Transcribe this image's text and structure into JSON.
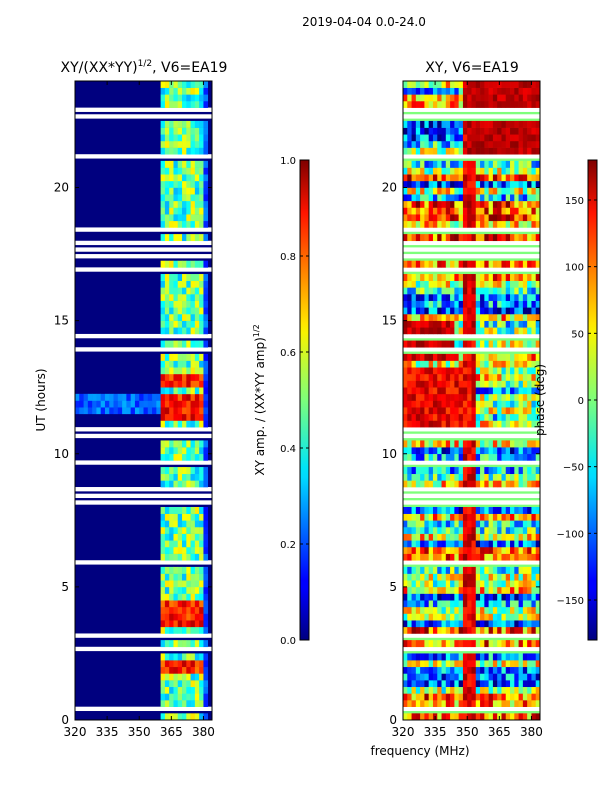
{
  "figure_title": "2019-04-04 0.0-24.0",
  "shared_xlabel": "frequency (MHz)",
  "chart_data": [
    {
      "type": "heatmap",
      "panel": "amplitude",
      "title_main": "XY/(XX*YY)",
      "title_exp": "1/2",
      "title_tail": ", V6=EA19",
      "ylabel": "UT (hours)",
      "x_ticks": [
        320,
        335,
        350,
        365,
        380
      ],
      "x_range": [
        320,
        384
      ],
      "y_ticks": [
        0,
        5,
        10,
        15,
        20
      ],
      "y_range": [
        0,
        24
      ],
      "colorbar_label_main": "XY amp. / (XX*YY amp)",
      "colorbar_label_exp": "1/2",
      "colorbar_ticks": [
        "0.0",
        "0.2",
        "0.4",
        "0.6",
        "0.8",
        "1.0"
      ],
      "colorbar_range": [
        0.0,
        1.0
      ],
      "colormap": "jet",
      "high_value_channels_mhz": [
        362,
        364,
        367,
        369,
        372,
        374,
        377,
        379
      ],
      "hot_time_ranges_h": [
        [
          11.3,
          12.3
        ],
        [
          12.5,
          13.0
        ],
        [
          3.5,
          4.6
        ],
        [
          1.8,
          2.2
        ]
      ],
      "blank_time_ranges_h": [
        [
          0.35,
          0.55
        ],
        [
          2.4,
          2.7
        ],
        [
          3.05,
          3.3
        ],
        [
          8.0,
          8.8
        ],
        [
          10.5,
          10.9
        ],
        [
          17.2,
          17.8
        ],
        [
          22.6,
          23.1
        ]
      ]
    },
    {
      "type": "heatmap",
      "panel": "phase",
      "title": "XY, V6=EA19",
      "x_ticks": [
        320,
        335,
        350,
        365,
        380
      ],
      "x_range": [
        320,
        384
      ],
      "y_ticks": [
        0,
        5,
        10,
        15,
        20
      ],
      "y_range": [
        0,
        24
      ],
      "colorbar_label": "phase (deg)",
      "colorbar_ticks": [
        150,
        100,
        50,
        0,
        -50,
        -100,
        -150
      ],
      "colorbar_range": [
        -180,
        180
      ],
      "colormap": "jet",
      "blank_time_ranges_h": [
        [
          0.35,
          0.55
        ],
        [
          2.4,
          2.7
        ],
        [
          3.05,
          3.3
        ],
        [
          8.0,
          8.8
        ],
        [
          10.5,
          10.9
        ],
        [
          17.2,
          17.8
        ],
        [
          22.6,
          23.1
        ]
      ]
    }
  ]
}
